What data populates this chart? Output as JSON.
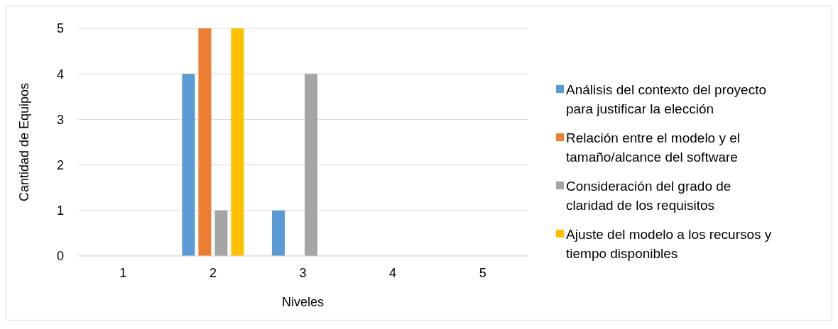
{
  "chart_data": {
    "type": "bar",
    "xlabel": "Niveles",
    "ylabel": "Cantidad de Equipos",
    "categories": [
      "1",
      "2",
      "3",
      "4",
      "5"
    ],
    "series": [
      {
        "name": "Análisis del contexto del proyecto para justificar la elección",
        "color": "#5b9bd5",
        "values": [
          0,
          4,
          1,
          0,
          0
        ]
      },
      {
        "name": "Relación entre el modelo y el tamaño/alcance del software",
        "color": "#ed7d31",
        "values": [
          0,
          5,
          0,
          0,
          0
        ]
      },
      {
        "name": "Consideración del grado de claridad de los requisitos",
        "color": "#a5a5a5",
        "values": [
          0,
          1,
          4,
          0,
          0
        ]
      },
      {
        "name": "Ajuste del modelo a los recursos y tiempo disponibles",
        "color": "#ffc000",
        "values": [
          0,
          5,
          0,
          0,
          0
        ]
      }
    ],
    "ylim": [
      0,
      5
    ],
    "yticks": [
      0,
      1,
      2,
      3,
      4,
      5
    ],
    "grid": "y",
    "legend": "right"
  }
}
